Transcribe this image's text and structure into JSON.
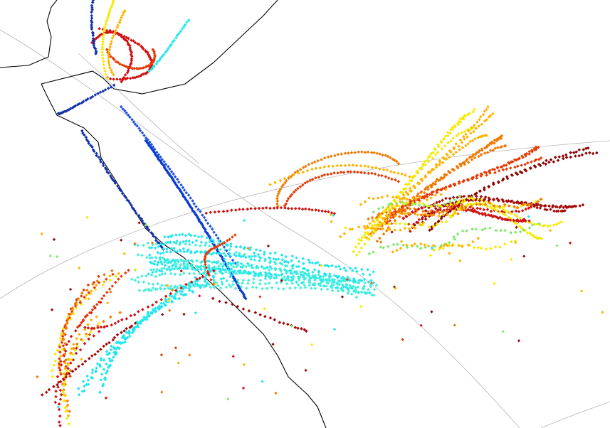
{
  "map": {
    "background_color": "#ffffff",
    "coastline_color": "#000000",
    "graticule_color": "#b4b4b4",
    "colormap": [
      "#00008f",
      "#0040ff",
      "#00bfff",
      "#40ffbf",
      "#bfff40",
      "#ffbf00",
      "#ff4000",
      "#8f0000"
    ],
    "tracks": [
      {
        "color": "#0a3ccf"
      },
      {
        "color": "#1f4fe0"
      },
      {
        "color": "#1330a8"
      },
      {
        "color": "#22e6ee"
      },
      {
        "color": "#44f0d8"
      },
      {
        "color": "#f5ea05"
      },
      {
        "color": "#ffb300"
      },
      {
        "color": "#f07800"
      },
      {
        "color": "#e43a05"
      },
      {
        "color": "#d01010"
      },
      {
        "color": "#a30606"
      },
      {
        "color": "#8a0303"
      },
      {
        "color": "#7ee86a"
      }
    ]
  }
}
